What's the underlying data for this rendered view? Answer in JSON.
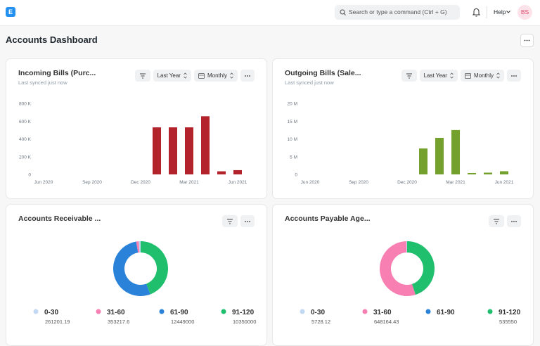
{
  "navbar": {
    "logo": "E",
    "search_placeholder": "Search or type a command (Ctrl + G)",
    "help": "Help",
    "avatar": "BS"
  },
  "page_title": "Accounts Dashboard",
  "chart_data": [
    {
      "type": "bar",
      "title": "Incoming Bills (Purc...",
      "subtitle": "Last synced just now",
      "filters": [
        "Last Year",
        "Monthly"
      ],
      "categories": [
        "Jun 2020",
        null,
        null,
        "Sep 2020",
        null,
        null,
        "Dec 2020",
        null,
        null,
        "Mar 2021",
        null,
        null,
        "Jun 2021"
      ],
      "values": [
        0,
        0,
        0,
        0,
        0,
        0,
        0,
        530000,
        530000,
        530000,
        655000,
        35000,
        48000
      ],
      "color": "#b3232c",
      "ylim": [
        0,
        800000
      ],
      "yticks": [
        0,
        {
          "value": 200000,
          "label": "200 K"
        },
        {
          "value": 400000,
          "label": "400 K"
        },
        {
          "value": 600000,
          "label": "600 K"
        },
        {
          "value": 800000,
          "label": "800 K"
        }
      ]
    },
    {
      "type": "bar",
      "title": "Outgoing Bills (Sale...",
      "subtitle": "Last synced just now",
      "filters": [
        "Last Year",
        "Monthly"
      ],
      "categories": [
        "Jun 2020",
        null,
        null,
        "Sep 2020",
        null,
        null,
        "Dec 2020",
        null,
        null,
        "Mar 2021",
        null,
        null,
        "Jun 2021"
      ],
      "values": [
        0,
        0,
        0,
        0,
        0,
        0,
        0,
        7300000,
        10300000,
        12500000,
        400000,
        500000,
        900000
      ],
      "color": "#74a12e",
      "ylim": [
        0,
        20000000
      ],
      "yticks": [
        0,
        {
          "value": 5000000,
          "label": "5 M"
        },
        {
          "value": 10000000,
          "label": "10 M"
        },
        {
          "value": 15000000,
          "label": "15 M"
        },
        {
          "value": 20000000,
          "label": "20 M"
        }
      ]
    },
    {
      "type": "donut",
      "title": "Accounts Receivable ...",
      "categories": [
        "0-30",
        "31-60",
        "61-90",
        "91-120"
      ],
      "values": [
        261201.19,
        353217.6,
        12449000,
        10350000
      ],
      "colors": [
        "#c2d9f3",
        "#f77fb2",
        "#2b82d9",
        "#1fbf6e"
      ]
    },
    {
      "type": "donut",
      "title": "Accounts Payable Age...",
      "categories": [
        "0-30",
        "31-60",
        "61-90",
        "91-120"
      ],
      "values": [
        5728.12,
        648164.43,
        null,
        535550
      ],
      "colors": [
        "#c2d9f3",
        "#f77fb2",
        "#2b82d9",
        "#1fbf6e"
      ]
    }
  ]
}
